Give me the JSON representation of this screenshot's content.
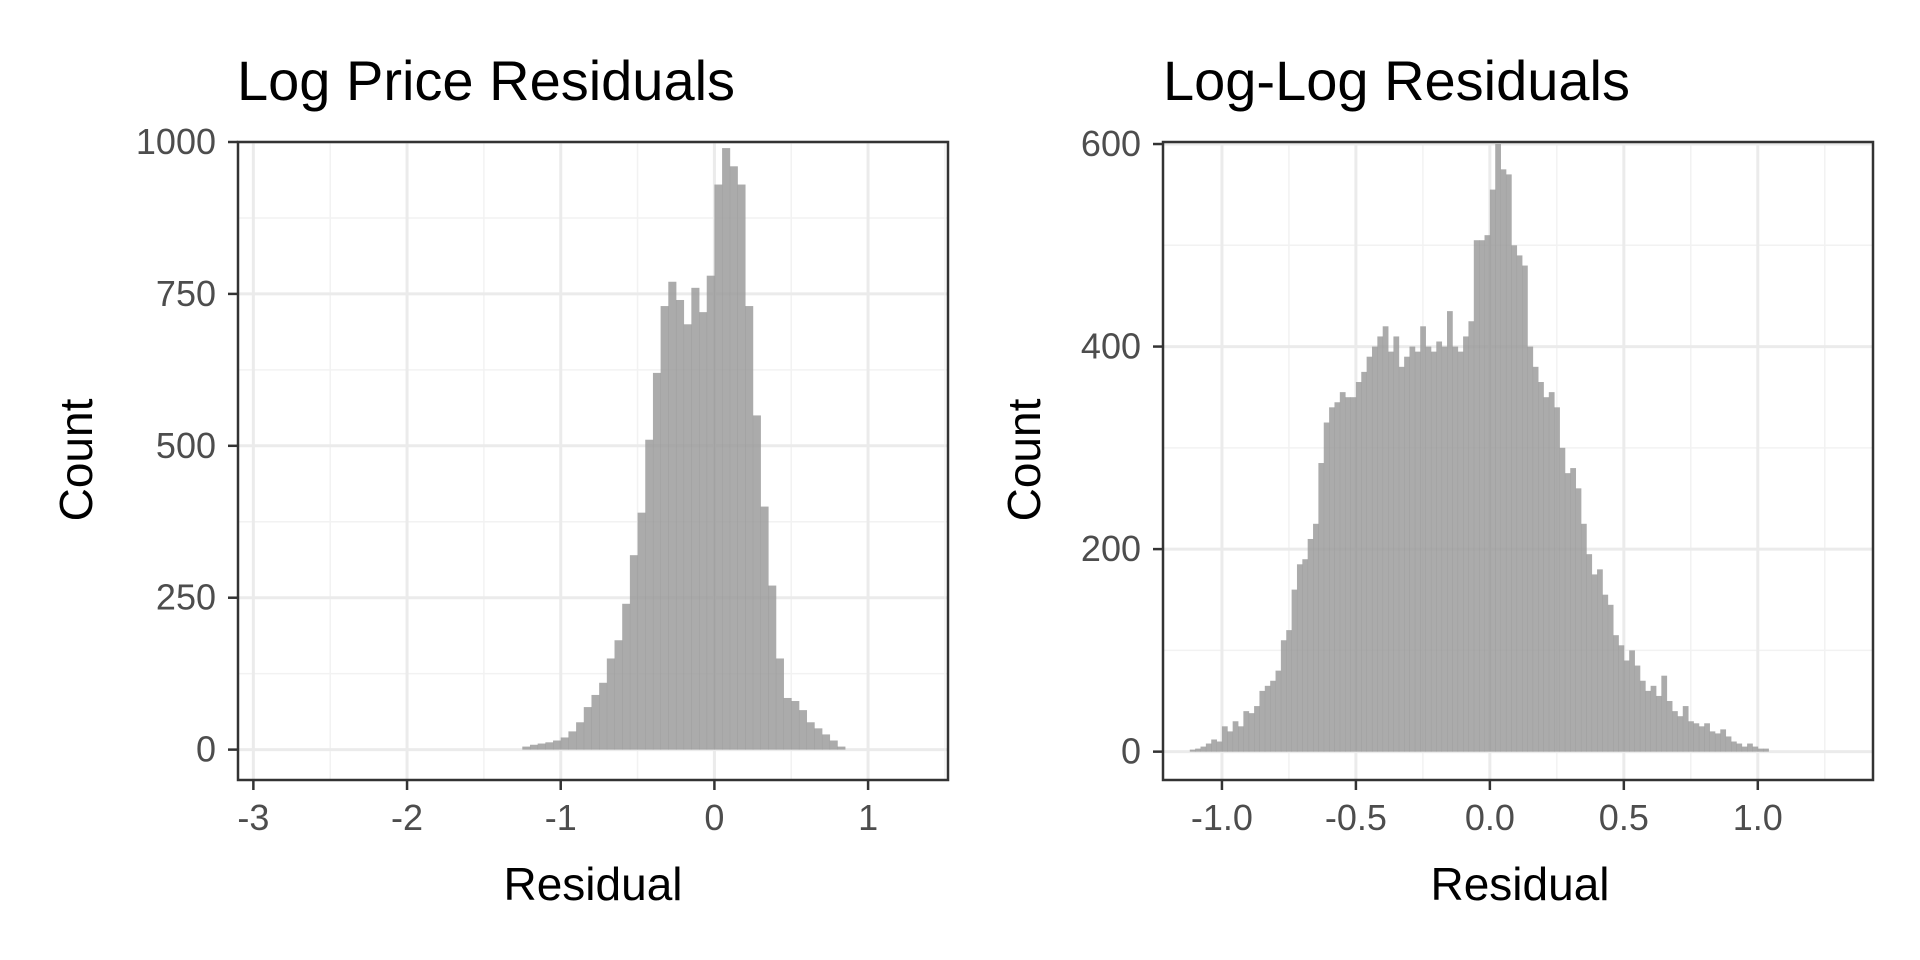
{
  "chart_data": [
    {
      "type": "bar",
      "title": "Log Price Residuals",
      "xlabel": "Residual",
      "ylabel": "Count",
      "xlim": [
        -3.1,
        1.52
      ],
      "ylim": [
        -50,
        1000
      ],
      "xticks": [
        -3,
        -2,
        -1,
        0,
        1
      ],
      "xtick_labels": [
        "-3",
        "-2",
        "-1",
        "0",
        "1"
      ],
      "yticks": [
        0,
        250,
        500,
        750,
        1000
      ],
      "ytick_labels": [
        "0",
        "250",
        "500",
        "750",
        "1000"
      ],
      "grid": true,
      "bin_width": 0.05,
      "bin_start": -1.25,
      "values": [
        5,
        8,
        10,
        12,
        15,
        20,
        30,
        45,
        70,
        90,
        110,
        150,
        180,
        240,
        320,
        390,
        510,
        620,
        730,
        770,
        740,
        700,
        760,
        720,
        780,
        930,
        990,
        960,
        930,
        730,
        550,
        400,
        270,
        150,
        85,
        80,
        65,
        45,
        35,
        25,
        15,
        5
      ]
    },
    {
      "type": "bar",
      "title": "Log-Log Residuals",
      "xlabel": "Residual",
      "ylabel": "Count",
      "xlim": [
        -1.22,
        1.43
      ],
      "ylim": [
        -28,
        602
      ],
      "xticks": [
        -1.0,
        -0.5,
        0.0,
        0.5,
        1.0
      ],
      "xtick_labels": [
        "-1.0",
        "-0.5",
        "0.0",
        "0.5",
        "1.0"
      ],
      "yticks": [
        0,
        200,
        400,
        600
      ],
      "ytick_labels": [
        "0",
        "200",
        "400",
        "600"
      ],
      "grid": true,
      "bin_width": 0.02,
      "bin_start": -1.12,
      "values": [
        2,
        3,
        5,
        8,
        12,
        10,
        25,
        20,
        30,
        25,
        40,
        38,
        45,
        60,
        65,
        70,
        80,
        110,
        120,
        160,
        185,
        190,
        210,
        225,
        285,
        325,
        340,
        345,
        355,
        350,
        350,
        365,
        375,
        390,
        400,
        410,
        420,
        395,
        410,
        380,
        390,
        400,
        395,
        420,
        400,
        395,
        405,
        400,
        435,
        400,
        395,
        410,
        425,
        505,
        505,
        510,
        555,
        600,
        575,
        570,
        500,
        490,
        480,
        400,
        380,
        365,
        350,
        355,
        340,
        300,
        275,
        280,
        260,
        225,
        195,
        175,
        180,
        155,
        145,
        115,
        105,
        90,
        100,
        85,
        70,
        60,
        65,
        55,
        75,
        50,
        40,
        35,
        45,
        30,
        28,
        25,
        28,
        20,
        18,
        22,
        15,
        10,
        8,
        5,
        8,
        5,
        3,
        3
      ]
    }
  ]
}
